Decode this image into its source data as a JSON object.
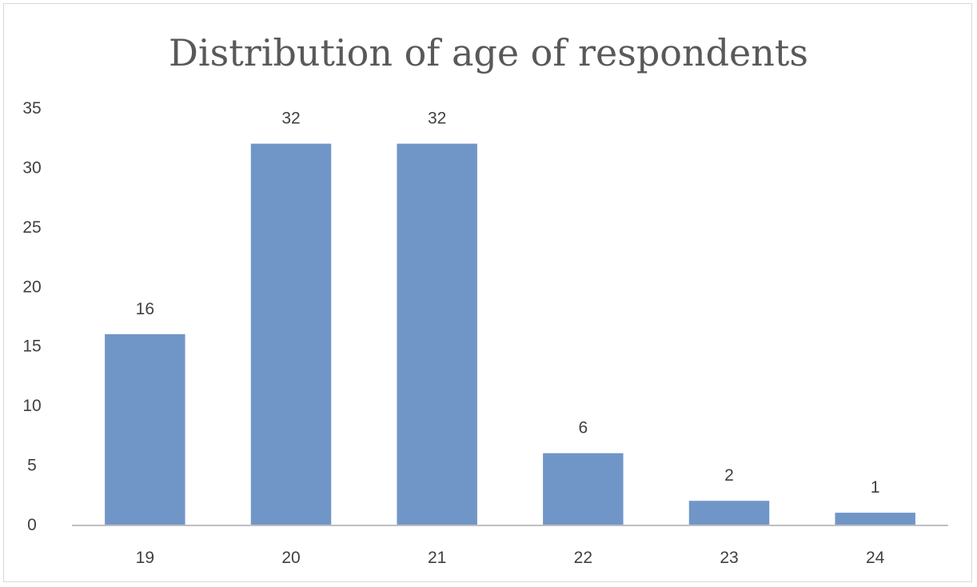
{
  "chart_data": {
    "type": "bar",
    "title": "Distribution of age of respondents",
    "xlabel": "",
    "ylabel": "",
    "categories": [
      "19",
      "20",
      "21",
      "22",
      "23",
      "24"
    ],
    "values": [
      16,
      32,
      32,
      6,
      2,
      1
    ],
    "data_labels": [
      "16",
      "32",
      "32",
      "6",
      "2",
      "1"
    ],
    "ylim": [
      0,
      35
    ],
    "yticks": [
      "0",
      "5",
      "10",
      "15",
      "20",
      "25",
      "30",
      "35"
    ],
    "grid": false,
    "legend": "none",
    "bar_color": "#7096c8",
    "axis_color": "#bfbfbf"
  }
}
